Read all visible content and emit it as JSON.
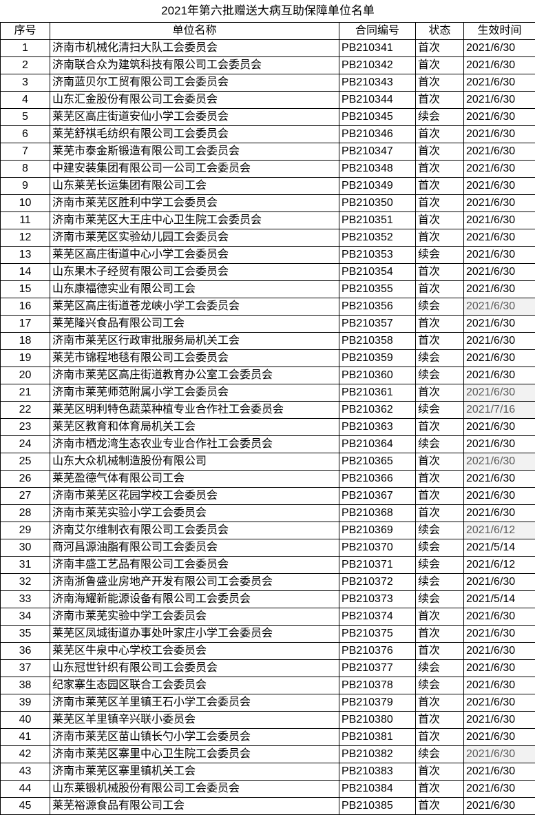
{
  "title": "2021年第六批赠送大病互助保障单位名单",
  "headers": [
    "序号",
    "单位名称",
    "合同编号",
    "状态",
    "生效时间"
  ],
  "rows": [
    [
      "1",
      "济南市机械化清扫大队工会委员会",
      "PB210341",
      "首次",
      "2021/6/30",
      false
    ],
    [
      "2",
      "济南联合众为建筑科技有限公司工会委员会",
      "PB210342",
      "首次",
      "2021/6/30",
      false
    ],
    [
      "3",
      "济南蓝贝尔工贸有限公司工会委员会",
      "PB210343",
      "首次",
      "2021/6/30",
      false
    ],
    [
      "4",
      "山东汇金股份有限公司工会委员会",
      "PB210344",
      "首次",
      "2021/6/30",
      false
    ],
    [
      "5",
      "莱芜区高庄街道安仙小学工会委员会",
      "PB210345",
      "续会",
      "2021/6/30",
      false
    ],
    [
      "6",
      "莱芜舒祺毛纺织有限公司工会委员会",
      "PB210346",
      "首次",
      "2021/6/30",
      false
    ],
    [
      "7",
      "莱芜市泰金斯锻造有限公司工会委员会",
      "PB210347",
      "首次",
      "2021/6/30",
      false
    ],
    [
      "8",
      "中建安装集团有限公司一公司工会委员会",
      "PB210348",
      "首次",
      "2021/6/30",
      false
    ],
    [
      "9",
      "山东莱芜长运集团有限公司工会",
      "PB210349",
      "首次",
      "2021/6/30",
      false
    ],
    [
      "10",
      "济南市莱芜区胜利中学工会委员会",
      "PB210350",
      "首次",
      "2021/6/30",
      false
    ],
    [
      "11",
      "济南市莱芜区大王庄中心卫生院工会委员会",
      "PB210351",
      "首次",
      "2021/6/30",
      false
    ],
    [
      "12",
      "济南市莱芜区实验幼儿园工会委员会",
      "PB210352",
      "首次",
      "2021/6/30",
      false
    ],
    [
      "13",
      "莱芜区高庄街道中心小学工会委员会",
      "PB210353",
      "续会",
      "2021/6/30",
      false
    ],
    [
      "14",
      "山东果木子经贸有限公司工会委员会",
      "PB210354",
      "首次",
      "2021/6/30",
      false
    ],
    [
      "15",
      "山东康福德实业有限公司工会",
      "PB210355",
      "首次",
      "2021/6/30",
      false
    ],
    [
      "16",
      "莱芜区高庄街道苍龙峡小学工会委员会",
      "PB210356",
      "续会",
      "2021/6/30",
      true
    ],
    [
      "17",
      "莱芜隆兴食品有限公司工会",
      "PB210357",
      "首次",
      "2021/6/30",
      false
    ],
    [
      "18",
      "济南市莱芜区行政审批服务局机关工会",
      "PB210358",
      "首次",
      "2021/6/30",
      false
    ],
    [
      "19",
      "莱芜市锦程地毯有限公司工会委员会",
      "PB210359",
      "续会",
      "2021/6/30",
      false
    ],
    [
      "20",
      "济南市莱芜区高庄街道教育办公室工会委员会",
      "PB210360",
      "续会",
      "2021/6/30",
      false
    ],
    [
      "21",
      "济南市莱芜师范附属小学工会委员会",
      "PB210361",
      "首次",
      "2021/6/30",
      true
    ],
    [
      "22",
      "莱芜区明利特色蔬菜种植专业合作社工会委员会",
      "PB210362",
      "续会",
      "2021/7/16",
      true
    ],
    [
      "23",
      "莱芜区教育和体育局机关工会",
      "PB210363",
      "首次",
      "2021/6/30",
      false
    ],
    [
      "24",
      "济南市栖龙湾生态农业专业合作社工会委员会",
      "PB210364",
      "续会",
      "2021/6/30",
      false
    ],
    [
      "25",
      "山东大众机械制造股份有限公司",
      "PB210365",
      "首次",
      "2021/6/30",
      true
    ],
    [
      "26",
      "莱芜盈德气体有限公司工会",
      "PB210366",
      "首次",
      "2021/6/30",
      false
    ],
    [
      "27",
      "济南市莱芜区花园学校工会委员会",
      "PB210367",
      "首次",
      "2021/6/30",
      false
    ],
    [
      "28",
      "济南市莱芜实验小学工会委员会",
      "PB210368",
      "首次",
      "2021/6/30",
      false
    ],
    [
      "29",
      "济南艾尔维制衣有限公司工会委员会",
      "PB210369",
      "续会",
      "2021/6/12",
      true
    ],
    [
      "30",
      "商河昌源油脂有限公司工会委员会",
      "PB210370",
      "续会",
      "2021/5/14",
      false
    ],
    [
      "31",
      "济南丰盛工艺品有限公司工会委员会",
      "PB210371",
      "续会",
      "2021/6/12",
      false
    ],
    [
      "32",
      "济南浙鲁盛业房地产开发有限公司工会委员会",
      "PB210372",
      "续会",
      "2021/6/30",
      false
    ],
    [
      "33",
      "济南海耀新能源设备有限公司工会委员会",
      "PB210373",
      "续会",
      "2021/5/14",
      false
    ],
    [
      "34",
      "济南市莱芜实验中学工会委员会",
      "PB210374",
      "首次",
      "2021/6/30",
      false
    ],
    [
      "35",
      "莱芜区凤城街道办事处叶家庄小学工会委员会",
      "PB210375",
      "首次",
      "2021/6/30",
      false
    ],
    [
      "36",
      "莱芜区牛泉中心学校工会委员会",
      "PB210376",
      "首次",
      "2021/6/30",
      false
    ],
    [
      "37",
      "山东冠世针织有限公司工会委员会",
      "PB210377",
      "续会",
      "2021/6/30",
      false
    ],
    [
      "38",
      "纪家寨生态园区联合工会委员会",
      "PB210378",
      "续会",
      "2021/6/30",
      false
    ],
    [
      "39",
      "济南市莱芜区羊里镇王石小学工会委员会",
      "PB210379",
      "首次",
      "2021/6/30",
      false
    ],
    [
      "40",
      "莱芜区羊里镇辛兴联小委员会",
      "PB210380",
      "首次",
      "2021/6/30",
      false
    ],
    [
      "41",
      "济南市莱芜区苗山镇长勺小学工会委员会",
      "PB210381",
      "首次",
      "2021/6/30",
      false
    ],
    [
      "42",
      "济南市莱芜区寨里中心卫生院工会委员会",
      "PB210382",
      "续会",
      "2021/6/30",
      true
    ],
    [
      "43",
      "济南市莱芜区寨里镇机关工会",
      "PB210383",
      "首次",
      "2021/6/30",
      false
    ],
    [
      "44",
      "山东莱锻机械股份有限公司工会委员会",
      "PB210384",
      "首次",
      "2021/6/30",
      false
    ],
    [
      "45",
      "莱芜裕源食品有限公司工会",
      "PB210385",
      "首次",
      "2021/6/30",
      false
    ]
  ]
}
